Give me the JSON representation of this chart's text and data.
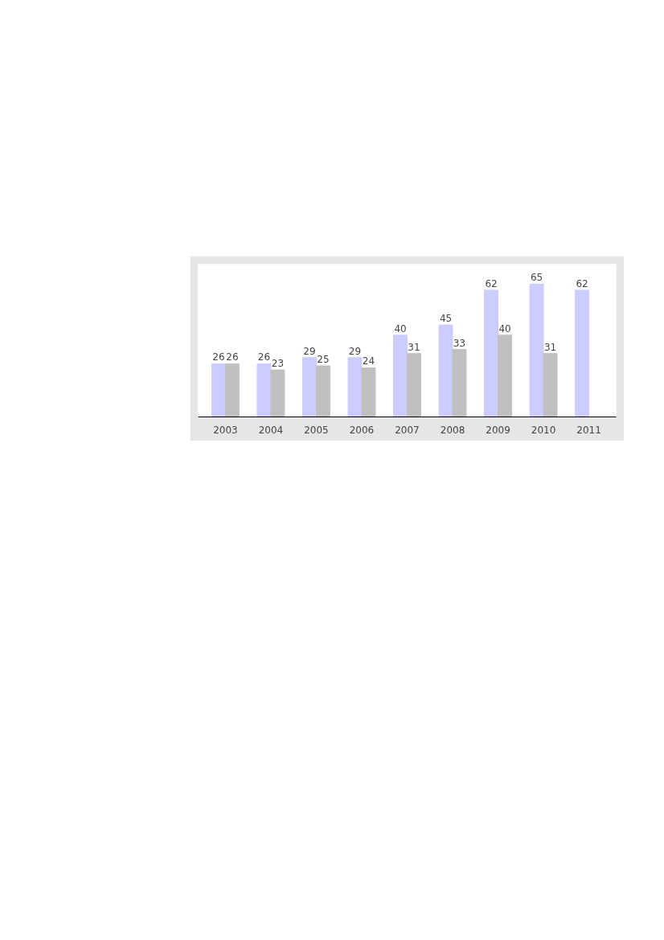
{
  "chart_data": {
    "type": "bar",
    "categories": [
      "2003",
      "2004",
      "2005",
      "2006",
      "2007",
      "2008",
      "2009",
      "2010",
      "2011"
    ],
    "series": [
      {
        "color": "#ccccff",
        "values": [
          26,
          26,
          29,
          29,
          40,
          45,
          62,
          65,
          62
        ]
      },
      {
        "color": "#c0c0c0",
        "values": [
          26,
          23,
          25,
          24,
          31,
          33,
          40,
          31,
          null
        ]
      }
    ],
    "data_labels": true
  }
}
